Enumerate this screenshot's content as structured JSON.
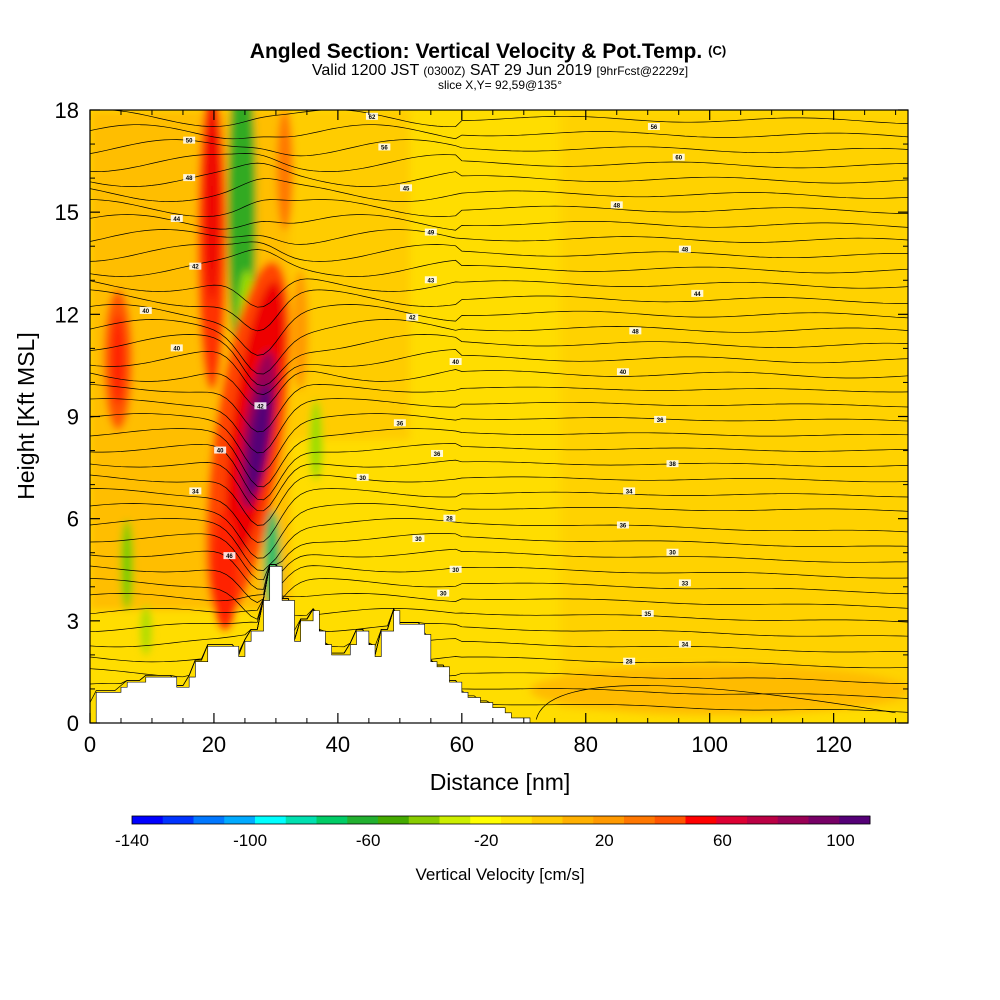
{
  "chart_data": {
    "type": "heatmap",
    "title": "Angled Section: Vertical Velocity & Pot.Temp.",
    "title_suffix": "(C)",
    "subtitle": {
      "part1": "Valid 1200 JST",
      "part2": "(0300Z)",
      "part3": "SAT 29 Jun 2019",
      "part4": "[9hrFcst@2229z]"
    },
    "subtitle2": "slice X,Y= 92,59@135°",
    "xlabel": "Distance [nm]",
    "ylabel": "Height [Kft MSL]",
    "xlim": [
      0,
      132
    ],
    "ylim": [
      0,
      18
    ],
    "x_ticks": [
      "0",
      "20",
      "40",
      "60",
      "80",
      "100",
      "120"
    ],
    "y_ticks": [
      "0",
      "3",
      "6",
      "9",
      "12",
      "15",
      "18"
    ],
    "colorbar": {
      "label": "Vertical Velocity [cm/s]",
      "range": [
        -140,
        110
      ],
      "tick_labels": [
        "-140",
        "-100",
        "-60",
        "-20",
        "20",
        "60",
        "100"
      ],
      "colors": [
        "#0000ff",
        "#0033ff",
        "#0077ff",
        "#00aaff",
        "#00ffff",
        "#00e0b0",
        "#00cc66",
        "#22b030",
        "#44aa00",
        "#88cc00",
        "#ccee00",
        "#ffff00",
        "#ffe600",
        "#ffcc00",
        "#ffb000",
        "#ff9900",
        "#ff7700",
        "#ff5500",
        "#ff0000",
        "#dd0033",
        "#bb0044",
        "#990055",
        "#770066",
        "#550077"
      ]
    },
    "terrain_profile": {
      "x": [
        0,
        1,
        1,
        5,
        5,
        6,
        6,
        9,
        9,
        14,
        14,
        16,
        16,
        17,
        17,
        19,
        19,
        24,
        24,
        25,
        25,
        26,
        26,
        28,
        28,
        29,
        29,
        31,
        31,
        33,
        33,
        34,
        34,
        36,
        36,
        37,
        37,
        38,
        38,
        39,
        39,
        42,
        42,
        43,
        43,
        45,
        45,
        46,
        46,
        47,
        47,
        49,
        49,
        50,
        50,
        54,
        54,
        55,
        55,
        56,
        56,
        58,
        58,
        60,
        60,
        61,
        61,
        63,
        63,
        65,
        65,
        67,
        67,
        68,
        68,
        71,
        71
      ],
      "y": [
        0,
        0,
        0.9,
        0.9,
        1.05,
        1.05,
        1.2,
        1.2,
        1.35,
        1.35,
        1.05,
        1.05,
        1.35,
        1.35,
        1.8,
        1.8,
        2.25,
        2.25,
        1.95,
        1.95,
        2.4,
        2.4,
        2.7,
        2.7,
        3.6,
        3.6,
        4.6,
        4.6,
        3.6,
        3.6,
        2.4,
        2.4,
        3.0,
        3.0,
        3.3,
        3.3,
        2.7,
        2.7,
        2.3,
        2.3,
        2.0,
        2.0,
        2.3,
        2.3,
        2.7,
        2.7,
        2.3,
        2.3,
        1.95,
        1.95,
        2.7,
        2.7,
        3.3,
        3.3,
        2.9,
        2.9,
        2.6,
        2.6,
        1.8,
        1.8,
        1.65,
        1.65,
        1.2,
        1.2,
        0.9,
        0.9,
        0.75,
        0.75,
        0.6,
        0.6,
        0.45,
        0.45,
        0.3,
        0.3,
        0.15,
        0.15,
        0
      ]
    },
    "contour_labels": [
      {
        "text": "62",
        "x": 45.5,
        "y": 17.8
      },
      {
        "text": "56",
        "x": 91,
        "y": 17.5
      },
      {
        "text": "50",
        "x": 16,
        "y": 17.1
      },
      {
        "text": "56",
        "x": 47.5,
        "y": 16.9
      },
      {
        "text": "60",
        "x": 95,
        "y": 16.6
      },
      {
        "text": "48",
        "x": 16,
        "y": 16.0
      },
      {
        "text": "45",
        "x": 51,
        "y": 15.7
      },
      {
        "text": "48",
        "x": 85,
        "y": 15.2
      },
      {
        "text": "44",
        "x": 14,
        "y": 14.8
      },
      {
        "text": "49",
        "x": 55,
        "y": 14.4
      },
      {
        "text": "48",
        "x": 96,
        "y": 13.9
      },
      {
        "text": "42",
        "x": 17,
        "y": 13.4
      },
      {
        "text": "43",
        "x": 55,
        "y": 13.0
      },
      {
        "text": "44",
        "x": 98,
        "y": 12.6
      },
      {
        "text": "40",
        "x": 9,
        "y": 12.1
      },
      {
        "text": "42",
        "x": 52,
        "y": 11.9
      },
      {
        "text": "48",
        "x": 88,
        "y": 11.5
      },
      {
        "text": "40",
        "x": 14,
        "y": 11.0
      },
      {
        "text": "40",
        "x": 59,
        "y": 10.6
      },
      {
        "text": "40",
        "x": 86,
        "y": 10.3
      },
      {
        "text": "42",
        "x": 27.5,
        "y": 9.3
      },
      {
        "text": "36",
        "x": 50,
        "y": 8.8
      },
      {
        "text": "36",
        "x": 92,
        "y": 8.9
      },
      {
        "text": "36",
        "x": 56,
        "y": 7.9
      },
      {
        "text": "38",
        "x": 94,
        "y": 7.6
      },
      {
        "text": "40",
        "x": 21,
        "y": 8.0
      },
      {
        "text": "30",
        "x": 44,
        "y": 7.2
      },
      {
        "text": "34",
        "x": 87,
        "y": 6.8
      },
      {
        "text": "34",
        "x": 17,
        "y": 6.8
      },
      {
        "text": "28",
        "x": 58,
        "y": 6.0
      },
      {
        "text": "36",
        "x": 86,
        "y": 5.8
      },
      {
        "text": "30",
        "x": 53,
        "y": 5.4
      },
      {
        "text": "30",
        "x": 94,
        "y": 5.0
      },
      {
        "text": "46",
        "x": 22.5,
        "y": 4.9
      },
      {
        "text": "30",
        "x": 59,
        "y": 4.5
      },
      {
        "text": "33",
        "x": 96,
        "y": 4.1
      },
      {
        "text": "30",
        "x": 57,
        "y": 3.8
      },
      {
        "text": "35",
        "x": 90,
        "y": 3.2
      },
      {
        "text": "34",
        "x": 96,
        "y": 2.3
      },
      {
        "text": "28",
        "x": 87,
        "y": 1.8
      }
    ]
  }
}
